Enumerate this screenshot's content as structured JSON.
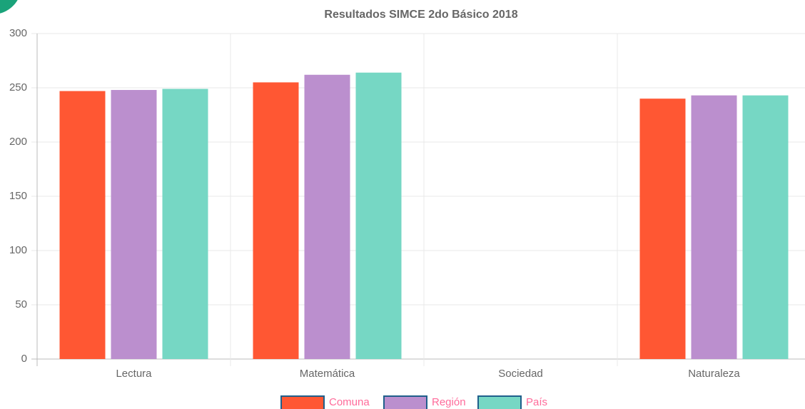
{
  "chart_data": {
    "type": "bar",
    "title": "Resultados SIMCE 2do Básico 2018",
    "categories": [
      "Lectura",
      "Matemática",
      "Sociedad",
      "Naturaleza"
    ],
    "series": [
      {
        "name": "Comuna",
        "color": "#ff5733",
        "values": [
          247,
          255,
          null,
          240
        ]
      },
      {
        "name": "Región",
        "color": "#bb8fce",
        "values": [
          248,
          262,
          null,
          243
        ]
      },
      {
        "name": "País",
        "color": "#76d7c4",
        "values": [
          249,
          264,
          null,
          243
        ]
      }
    ],
    "ylim": [
      0,
      300
    ],
    "yticks": [
      0,
      50,
      100,
      150,
      200,
      250,
      300
    ],
    "grid": true,
    "legend": "bottom"
  }
}
